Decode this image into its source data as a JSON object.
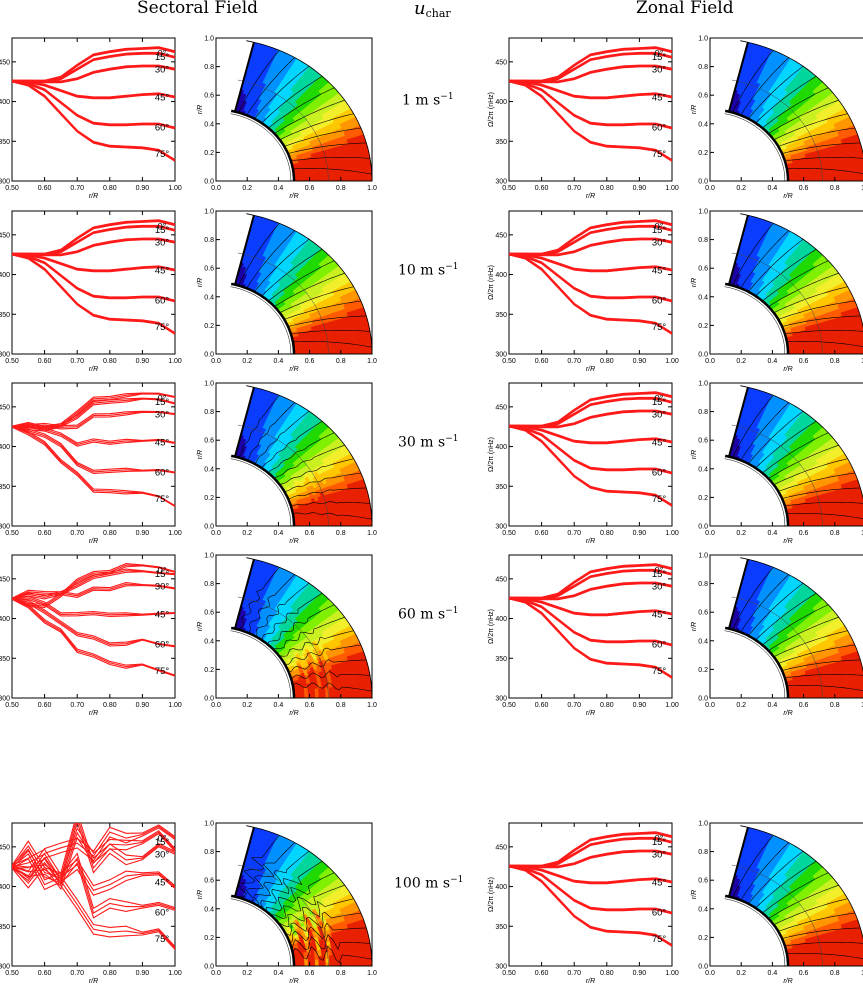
{
  "headers": {
    "sectoral": "Sectoral Field",
    "zonal": "Zonal Field",
    "uchar_symbol": "u",
    "uchar_sub": "char"
  },
  "speeds": [
    "1  m  s",
    "10  m  s",
    "30  m  s",
    "60  m  s",
    "100  m  s"
  ],
  "speed_unit_exponent": "−1",
  "line_axes": {
    "xlabel": "r/R",
    "ylabel": "Ω/2π (nHz)",
    "xticks": [
      "0.50",
      "0.60",
      "0.70",
      "0.80",
      "0.90",
      "1.00"
    ],
    "yticks": [
      "300",
      "350",
      "400",
      "450"
    ],
    "xlim": [
      0.5,
      1.0
    ],
    "ylim": [
      300,
      480
    ]
  },
  "contour_axes": {
    "xlabel": "r/R",
    "ylabel": "r/R",
    "ticks": [
      "0.0",
      "0.2",
      "0.4",
      "0.6",
      "0.8",
      "1.0"
    ]
  },
  "latitude_labels": [
    "0°",
    "15°",
    "30°",
    "45°",
    "60°",
    "75°"
  ],
  "colors": {
    "line": "#ff1a1a",
    "palette": [
      "#e81f00",
      "#ff5a00",
      "#ff9500",
      "#ffc700",
      "#f2ef2a",
      "#c9f020",
      "#7ff000",
      "#1ed900",
      "#00d69b",
      "#00d6ff",
      "#0090ff",
      "#0a3cff",
      "#1a00a6"
    ]
  },
  "chart_data": {
    "type": "line",
    "x": [
      0.5,
      0.55,
      0.6,
      0.65,
      0.7,
      0.75,
      0.8,
      0.85,
      0.9,
      0.95,
      1.0
    ],
    "series": [
      {
        "name": "0°",
        "values": [
          425,
          425,
          425,
          430,
          445,
          458,
          462,
          465,
          466,
          467,
          462
        ]
      },
      {
        "name": "15°",
        "values": [
          425,
          425,
          425,
          428,
          440,
          452,
          456,
          459,
          460,
          460,
          455
        ]
      },
      {
        "name": "30°",
        "values": [
          425,
          425,
          424,
          424,
          428,
          436,
          440,
          443,
          444,
          444,
          440
        ]
      },
      {
        "name": "45°",
        "values": [
          425,
          424,
          420,
          413,
          406,
          404,
          404,
          406,
          408,
          409,
          405
        ]
      },
      {
        "name": "60°",
        "values": [
          425,
          422,
          414,
          398,
          382,
          372,
          370,
          370,
          371,
          371,
          366
        ]
      },
      {
        "name": "75°",
        "values": [
          425,
          420,
          406,
          384,
          362,
          348,
          343,
          342,
          341,
          338,
          325
        ]
      }
    ],
    "xlabel": "r/R",
    "ylabel": "Ω/2π (nHz)",
    "ylim": [
      300,
      480
    ]
  }
}
